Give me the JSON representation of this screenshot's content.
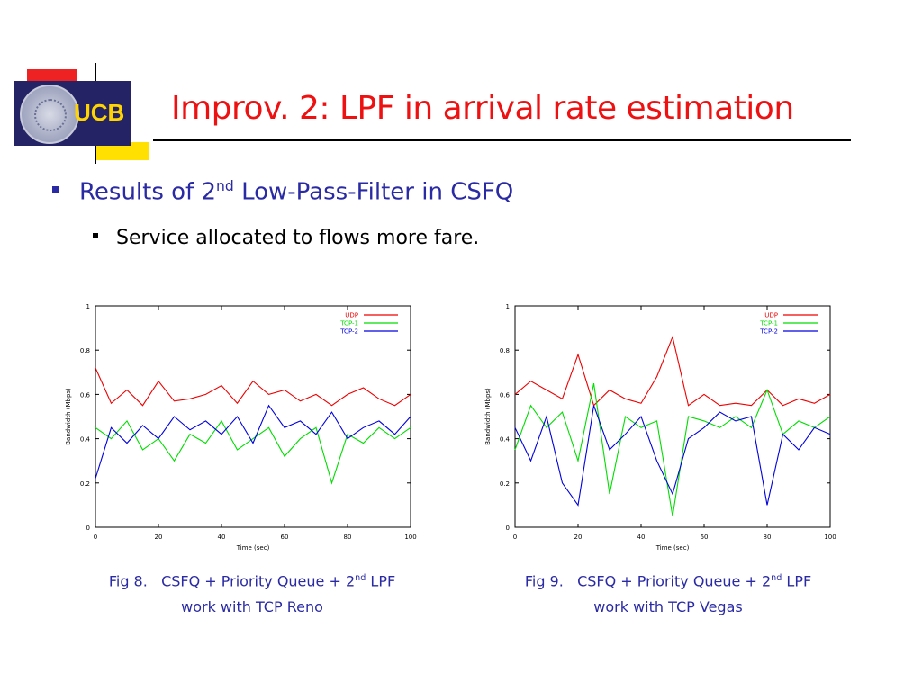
{
  "slide": {
    "logo_text": "UCB",
    "title": "Improv. 2: LPF in arrival rate estimation",
    "bullet1_pre": "Results of 2",
    "bullet1_sup": "nd",
    "bullet1_post": " Low-Pass-Filter in CSFQ",
    "bullet2": "Service allocated to flows more fare.",
    "accent_color": "#ee1111",
    "bullet_color": "#2a2aa4"
  },
  "captions": [
    {
      "line1_pre": "Fig 8.   CSFQ + Priority Queue + 2",
      "line1_sup": "nd",
      "line1_post": " LPF",
      "line2": "work with TCP Reno"
    },
    {
      "line1_pre": "Fig 9.   CSFQ + Priority Queue + 2",
      "line1_sup": "nd",
      "line1_post": " LPF",
      "line2": "work with TCP Vegas"
    }
  ],
  "chart_data": [
    {
      "type": "line",
      "xlabel": "Time (sec)",
      "ylabel": "Bandwidth (Mbps)",
      "xlim": [
        0,
        100
      ],
      "ylim": [
        0,
        1
      ],
      "xticks": [
        "0",
        "20",
        "40",
        "60",
        "80",
        "100"
      ],
      "yticks": [
        "0",
        "0.2",
        "0.4",
        "0.6",
        "0.8",
        "1"
      ],
      "legend_position": "top-right",
      "x": [
        0,
        5,
        10,
        15,
        20,
        25,
        30,
        35,
        40,
        45,
        50,
        55,
        60,
        65,
        70,
        75,
        80,
        85,
        90,
        95,
        100
      ],
      "series": [
        {
          "name": "UDP",
          "color": "#ee0000",
          "values": [
            0.72,
            0.56,
            0.62,
            0.55,
            0.66,
            0.57,
            0.58,
            0.6,
            0.64,
            0.56,
            0.66,
            0.6,
            0.62,
            0.57,
            0.6,
            0.55,
            0.6,
            0.63,
            0.58,
            0.55,
            0.6
          ]
        },
        {
          "name": "TCP-1",
          "color": "#00dd00",
          "values": [
            0.45,
            0.4,
            0.48,
            0.35,
            0.4,
            0.3,
            0.42,
            0.38,
            0.48,
            0.35,
            0.4,
            0.45,
            0.32,
            0.4,
            0.45,
            0.2,
            0.42,
            0.38,
            0.45,
            0.4,
            0.45
          ]
        },
        {
          "name": "TCP-2",
          "color": "#0000dd",
          "values": [
            0.22,
            0.45,
            0.38,
            0.46,
            0.4,
            0.5,
            0.44,
            0.48,
            0.42,
            0.5,
            0.38,
            0.55,
            0.45,
            0.48,
            0.42,
            0.52,
            0.4,
            0.45,
            0.48,
            0.42,
            0.5
          ]
        }
      ]
    },
    {
      "type": "line",
      "xlabel": "Time (sec)",
      "ylabel": "Bandwidth (Mbps)",
      "xlim": [
        0,
        100
      ],
      "ylim": [
        0,
        1
      ],
      "xticks": [
        "0",
        "20",
        "40",
        "60",
        "80",
        "100"
      ],
      "yticks": [
        "0",
        "0.2",
        "0.4",
        "0.6",
        "0.8",
        "1"
      ],
      "legend_position": "top-right",
      "x": [
        0,
        5,
        10,
        15,
        20,
        25,
        30,
        35,
        40,
        45,
        50,
        55,
        60,
        65,
        70,
        75,
        80,
        85,
        90,
        95,
        100
      ],
      "series": [
        {
          "name": "UDP",
          "color": "#ee0000",
          "values": [
            0.6,
            0.66,
            0.62,
            0.58,
            0.78,
            0.55,
            0.62,
            0.58,
            0.56,
            0.68,
            0.86,
            0.55,
            0.6,
            0.55,
            0.56,
            0.55,
            0.62,
            0.55,
            0.58,
            0.56,
            0.6
          ]
        },
        {
          "name": "TCP-1",
          "color": "#00dd00",
          "values": [
            0.35,
            0.55,
            0.45,
            0.52,
            0.3,
            0.65,
            0.15,
            0.5,
            0.45,
            0.48,
            0.05,
            0.5,
            0.48,
            0.45,
            0.5,
            0.45,
            0.62,
            0.42,
            0.48,
            0.45,
            0.5
          ]
        },
        {
          "name": "TCP-2",
          "color": "#0000dd",
          "values": [
            0.45,
            0.3,
            0.5,
            0.2,
            0.1,
            0.55,
            0.35,
            0.42,
            0.5,
            0.3,
            0.15,
            0.4,
            0.45,
            0.52,
            0.48,
            0.5,
            0.1,
            0.42,
            0.35,
            0.45,
            0.42
          ]
        }
      ]
    }
  ]
}
